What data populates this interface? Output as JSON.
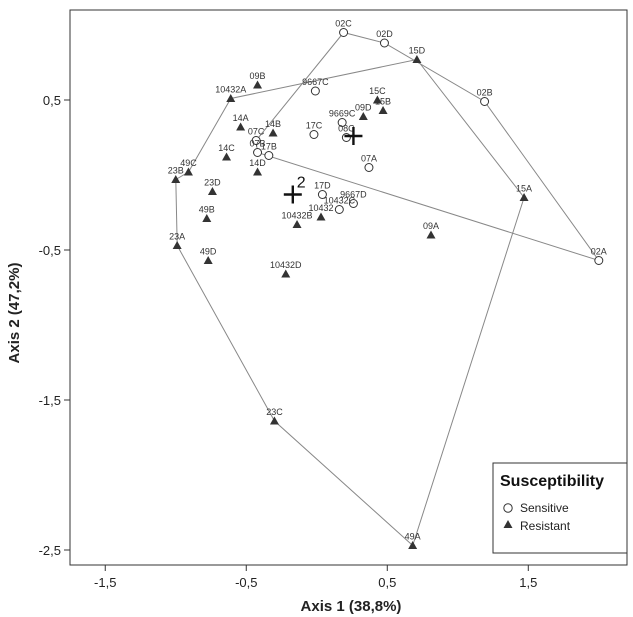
{
  "chart_data": {
    "type": "scatter",
    "xlabel": "Axis 1 (38,8%)",
    "ylabel": "Axis 2 (47,2%)",
    "xlim": [
      -1.75,
      2.2
    ],
    "ylim": [
      -2.6,
      1.1
    ],
    "xticks": [
      -1.5,
      -0.5,
      0.5,
      1.5
    ],
    "xtick_labels": [
      "-1,5",
      "-0,5",
      "0,5",
      "1,5"
    ],
    "yticks": [
      0.5,
      -0.5,
      -1.5,
      -2.5
    ],
    "ytick_labels": [
      "0,5",
      "-0,5",
      "-1,5",
      "-2,5"
    ],
    "legend": {
      "title": "Susceptibility",
      "position": "bottom-right",
      "entries": [
        {
          "label": "Sensitive",
          "marker": "circle"
        },
        {
          "label": "Resistant",
          "marker": "triangle"
        }
      ]
    },
    "series": [
      {
        "name": "Sensitive",
        "marker": "circle",
        "points": [
          {
            "label": "02C",
            "x": 0.19,
            "y": 0.95
          },
          {
            "label": "02D",
            "x": 0.48,
            "y": 0.88
          },
          {
            "label": "02B",
            "x": 1.19,
            "y": 0.49
          },
          {
            "label": "02A",
            "x": 2.0,
            "y": -0.57
          },
          {
            "label": "9667C",
            "x": -0.01,
            "y": 0.56
          },
          {
            "label": "17C",
            "x": -0.02,
            "y": 0.27
          },
          {
            "label": "07C",
            "x": -0.43,
            "y": 0.23
          },
          {
            "label": "07B",
            "x": -0.42,
            "y": 0.15
          },
          {
            "label": "17B",
            "x": -0.34,
            "y": 0.13
          },
          {
            "label": "9669C",
            "x": 0.18,
            "y": 0.35
          },
          {
            "label": "08C",
            "x": 0.21,
            "y": 0.25
          },
          {
            "label": "07A",
            "x": 0.37,
            "y": 0.05
          },
          {
            "label": "17D",
            "x": 0.04,
            "y": -0.13
          },
          {
            "label": "9667D",
            "x": 0.26,
            "y": -0.19
          },
          {
            "label": "10432C",
            "x": 0.16,
            "y": -0.23
          }
        ]
      },
      {
        "name": "Resistant",
        "marker": "triangle",
        "points": [
          {
            "label": "15D",
            "x": 0.71,
            "y": 0.77
          },
          {
            "label": "15C",
            "x": 0.43,
            "y": 0.5
          },
          {
            "label": "15B",
            "x": 0.47,
            "y": 0.43
          },
          {
            "label": "09D",
            "x": 0.33,
            "y": 0.39
          },
          {
            "label": "09B",
            "x": -0.42,
            "y": 0.6
          },
          {
            "label": "10432A",
            "x": -0.61,
            "y": 0.51
          },
          {
            "label": "14A",
            "x": -0.54,
            "y": 0.32
          },
          {
            "label": "14B",
            "x": -0.31,
            "y": 0.28
          },
          {
            "label": "14C",
            "x": -0.64,
            "y": 0.12
          },
          {
            "label": "14D",
            "x": -0.42,
            "y": 0.02
          },
          {
            "label": "49C",
            "x": -0.91,
            "y": 0.02
          },
          {
            "label": "23B",
            "x": -1.0,
            "y": -0.03
          },
          {
            "label": "23D",
            "x": -0.74,
            "y": -0.11
          },
          {
            "label": "49B",
            "x": -0.78,
            "y": -0.29
          },
          {
            "label": "23A",
            "x": -0.99,
            "y": -0.47
          },
          {
            "label": "49D",
            "x": -0.77,
            "y": -0.57
          },
          {
            "label": "10432B",
            "x": -0.14,
            "y": -0.33
          },
          {
            "label": "10432",
            "x": 0.03,
            "y": -0.28
          },
          {
            "label": "10432D",
            "x": -0.22,
            "y": -0.66
          },
          {
            "label": "09A",
            "x": 0.81,
            "y": -0.4
          },
          {
            "label": "15A",
            "x": 1.47,
            "y": -0.15
          },
          {
            "label": "23C",
            "x": -0.3,
            "y": -1.64
          },
          {
            "label": "49A",
            "x": 0.68,
            "y": -2.47
          }
        ]
      }
    ],
    "centroids": [
      {
        "label": "1",
        "x": 0.26,
        "y": 0.26,
        "show_label": false
      },
      {
        "label": "2",
        "x": -0.17,
        "y": -0.13,
        "show_label": true
      }
    ],
    "hulls": [
      {
        "name": "Sensitive",
        "vertices": [
          [
            -0.43,
            0.23
          ],
          [
            0.19,
            0.95
          ],
          [
            0.48,
            0.88
          ],
          [
            1.19,
            0.49
          ],
          [
            2.0,
            -0.57
          ],
          [
            -0.42,
            0.15
          ]
        ]
      },
      {
        "name": "Resistant",
        "vertices": [
          [
            -1.0,
            -0.03
          ],
          [
            -0.91,
            0.02
          ],
          [
            -0.61,
            0.51
          ],
          [
            0.71,
            0.77
          ],
          [
            1.47,
            -0.15
          ],
          [
            0.68,
            -2.47
          ],
          [
            -0.3,
            -1.64
          ],
          [
            -0.99,
            -0.47
          ]
        ]
      }
    ]
  }
}
